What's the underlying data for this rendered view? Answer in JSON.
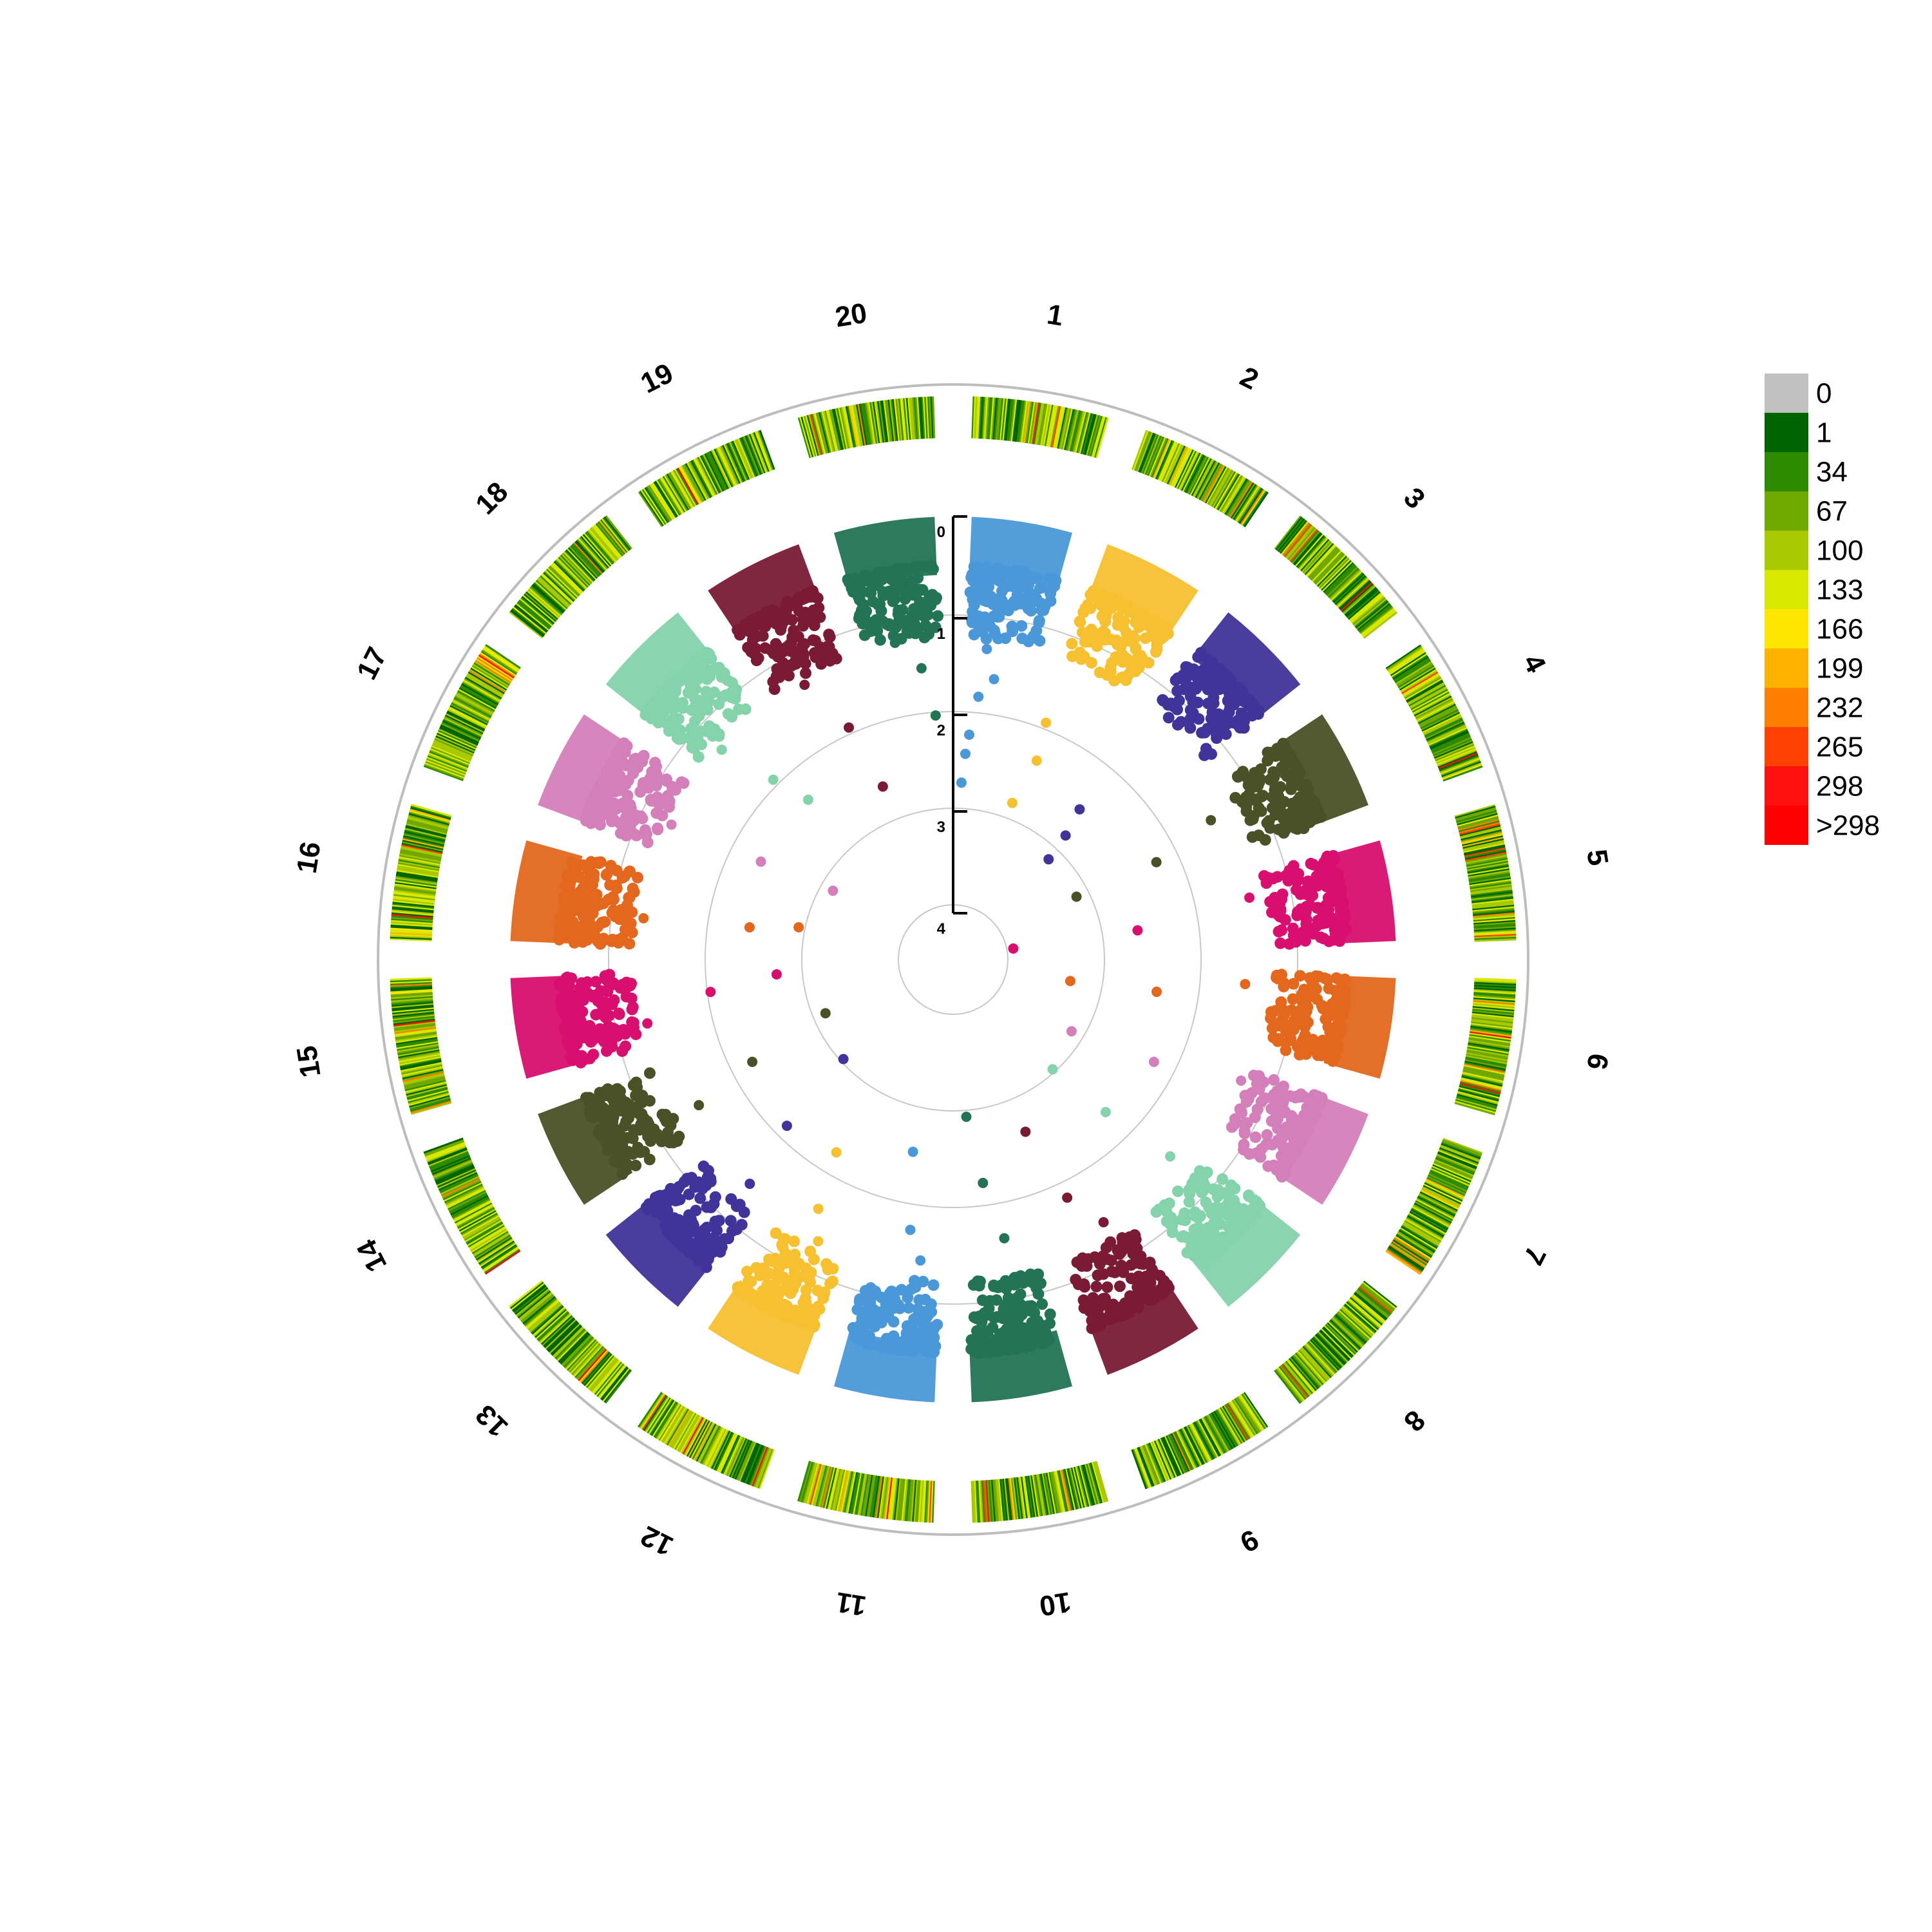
{
  "chart_data": {
    "type": "scatter",
    "subtype": "circular-manhattan-with-snp-density-ring",
    "title": "",
    "chromosomes": [
      "1",
      "2",
      "3",
      "4",
      "5",
      "6",
      "7",
      "8",
      "9",
      "10",
      "11",
      "12",
      "13",
      "14",
      "15",
      "16",
      "17",
      "18",
      "19",
      "20"
    ],
    "chromosome_colors": [
      "#4a98d8",
      "#f6c030",
      "#403399",
      "#4a5126",
      "#d80f6e",
      "#e3671c",
      "#d47fb9",
      "#84d3ab",
      "#7a1a35",
      "#237355",
      "#4a98d8",
      "#f6c030",
      "#403399",
      "#4a5126",
      "#d80f6e",
      "#e3671c",
      "#d47fb9",
      "#84d3ab",
      "#7a1a35",
      "#237355"
    ],
    "radial_axis": {
      "label": "",
      "ticks": [
        "0",
        "1",
        "2",
        "3",
        "4"
      ],
      "range": [
        0,
        4
      ],
      "direction": "inward"
    },
    "grid": true,
    "points_per_chromosome_in_band_0_1": "dense",
    "outlier_points": [
      {
        "chr": "1",
        "pos": 0.3,
        "value": 1.3
      },
      {
        "chr": "1",
        "pos": 0.45,
        "value": 1.6
      },
      {
        "chr": "1",
        "pos": 0.25,
        "value": 1.8
      },
      {
        "chr": "1",
        "pos": 0.15,
        "value": 2.2
      },
      {
        "chr": "1",
        "pos": 0.1,
        "value": 2.4
      },
      {
        "chr": "1",
        "pos": 0.05,
        "value": 2.7
      },
      {
        "chr": "2",
        "pos": 0.1,
        "value": 1.9
      },
      {
        "chr": "2",
        "pos": 0.2,
        "value": 2.3
      },
      {
        "chr": "2",
        "pos": 0.05,
        "value": 2.8
      },
      {
        "chr": "3",
        "pos": 0.15,
        "value": 2.5
      },
      {
        "chr": "3",
        "pos": 0.3,
        "value": 2.8
      },
      {
        "chr": "3",
        "pos": 0.4,
        "value": 3.1
      },
      {
        "chr": "4",
        "pos": 0.4,
        "value": 1.5
      },
      {
        "chr": "4",
        "pos": 0.6,
        "value": 2.2
      },
      {
        "chr": "4",
        "pos": 0.5,
        "value": 3.1
      },
      {
        "chr": "5",
        "pos": 0.3,
        "value": 1.4
      },
      {
        "chr": "5",
        "pos": 0.5,
        "value": 2.6
      },
      {
        "chr": "5",
        "pos": 0.4,
        "value": 3.9
      },
      {
        "chr": "6",
        "pos": 0.2,
        "value": 1.5
      },
      {
        "chr": "6",
        "pos": 0.5,
        "value": 2.4
      },
      {
        "chr": "6",
        "pos": 0.6,
        "value": 3.3
      },
      {
        "chr": "7",
        "pos": 0.2,
        "value": 1.3
      },
      {
        "chr": "7",
        "pos": 0.5,
        "value": 2.2
      },
      {
        "chr": "7",
        "pos": 0.8,
        "value": 3.1
      },
      {
        "chr": "8",
        "pos": 0.3,
        "value": 1.5
      },
      {
        "chr": "8",
        "pos": 0.5,
        "value": 2.3
      },
      {
        "chr": "8",
        "pos": 0.7,
        "value": 3.0
      },
      {
        "chr": "9",
        "pos": 0.3,
        "value": 1.4
      },
      {
        "chr": "9",
        "pos": 0.6,
        "value": 1.8
      },
      {
        "chr": "9",
        "pos": 0.8,
        "value": 2.6
      },
      {
        "chr": "10",
        "pos": 0.4,
        "value": 1.6
      },
      {
        "chr": "10",
        "pos": 0.6,
        "value": 2.2
      },
      {
        "chr": "10",
        "pos": 0.8,
        "value": 2.9
      },
      {
        "chr": "11",
        "pos": 0.3,
        "value": 1.4
      },
      {
        "chr": "11",
        "pos": 0.5,
        "value": 1.7
      },
      {
        "chr": "11",
        "pos": 0.7,
        "value": 2.5
      },
      {
        "chr": "12",
        "pos": 0.4,
        "value": 1.3
      },
      {
        "chr": "12",
        "pos": 0.6,
        "value": 1.6
      },
      {
        "chr": "12",
        "pos": 0.8,
        "value": 2.2
      },
      {
        "chr": "13",
        "pos": 0.3,
        "value": 1.4
      },
      {
        "chr": "13",
        "pos": 0.5,
        "value": 2.1
      },
      {
        "chr": "13",
        "pos": 0.7,
        "value": 3.0
      },
      {
        "chr": "14",
        "pos": 0.3,
        "value": 1.5
      },
      {
        "chr": "14",
        "pos": 0.5,
        "value": 2.2
      },
      {
        "chr": "14",
        "pos": 0.8,
        "value": 3.1
      },
      {
        "chr": "15",
        "pos": 0.3,
        "value": 1.3
      },
      {
        "chr": "15",
        "pos": 0.6,
        "value": 2.0
      },
      {
        "chr": "15",
        "pos": 0.8,
        "value": 2.7
      },
      {
        "chr": "16",
        "pos": 0.4,
        "value": 1.3
      },
      {
        "chr": "16",
        "pos": 0.5,
        "value": 2.4
      },
      {
        "chr": "16",
        "pos": 0.7,
        "value": 2.9
      },
      {
        "chr": "17",
        "pos": 0.4,
        "value": 1.3
      },
      {
        "chr": "17",
        "pos": 0.5,
        "value": 2.3
      },
      {
        "chr": "17",
        "pos": 0.7,
        "value": 3.1
      },
      {
        "chr": "18",
        "pos": 0.3,
        "value": 1.3
      },
      {
        "chr": "18",
        "pos": 0.5,
        "value": 1.9
      },
      {
        "chr": "18",
        "pos": 0.7,
        "value": 2.3
      },
      {
        "chr": "19",
        "pos": 0.4,
        "value": 1.3
      },
      {
        "chr": "19",
        "pos": 0.7,
        "value": 1.9
      },
      {
        "chr": "19",
        "pos": 0.85,
        "value": 2.6
      },
      {
        "chr": "20",
        "pos": 0.4,
        "value": 1.2
      },
      {
        "chr": "20",
        "pos": 0.7,
        "value": 1.5
      },
      {
        "chr": "20",
        "pos": 0.85,
        "value": 2.0
      }
    ],
    "density_ring": {
      "label": "",
      "legend": {
        "placement": "right",
        "entries": [
          {
            "label": "0",
            "color": "#c0c0c0"
          },
          {
            "label": "1",
            "color": "#006400"
          },
          {
            "label": "34",
            "color": "#2e8b00"
          },
          {
            "label": "67",
            "color": "#6fa800"
          },
          {
            "label": "100",
            "color": "#a8c800"
          },
          {
            "label": "133",
            "color": "#d8e800"
          },
          {
            "label": "166",
            "color": "#ffe600"
          },
          {
            "label": "199",
            "color": "#ffb300"
          },
          {
            "label": "232",
            "color": "#ff7f00"
          },
          {
            "label": "265",
            "color": "#ff4000"
          },
          {
            "label": "298",
            "color": "#ff1010"
          },
          {
            "label": ">298",
            "color": "#ff0000"
          }
        ]
      }
    }
  }
}
